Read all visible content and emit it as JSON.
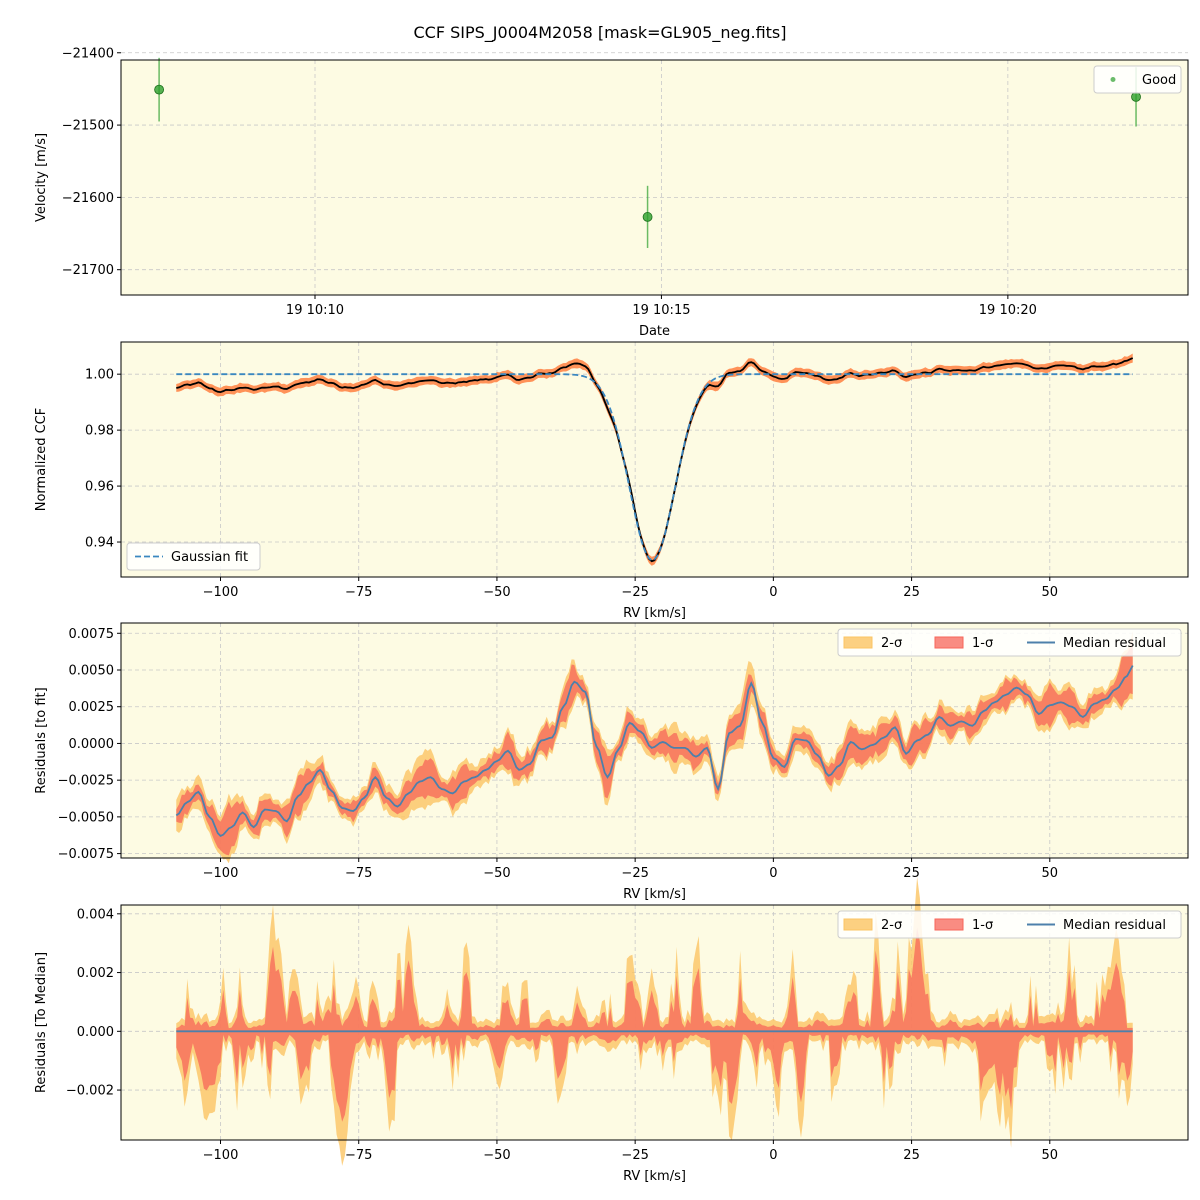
{
  "figure": {
    "title": "CCF SIPS_J0004M2058 [mask=GL905_neg.fits]",
    "background": "#ffffff",
    "panel_background": "#fdfbe3",
    "grid_color": "#c8c8c8"
  },
  "colors": {
    "good_point": "#2ca02c",
    "ccf_line": "#000000",
    "ccf_band": "#ff7f3f",
    "gaussian_fit": "#3a87c0",
    "sigma2": "#fbc463",
    "sigma1": "#f7665a",
    "median_residual": "#4d80ab"
  },
  "chart_data": [
    {
      "type": "scatter",
      "xlabel": "Date",
      "ylabel": "Velocity [m/s]",
      "xlim_minutes": [
        7.2,
        22.6
      ],
      "ylim": [
        -21735,
        -21410
      ],
      "xticks": [
        10,
        15,
        20
      ],
      "xtick_labels": [
        "19 10:10",
        "19 10:15",
        "19 10:20"
      ],
      "yticks": [
        -21400,
        -21500,
        -21600,
        -21700
      ],
      "ytick_labels": [
        "−21400",
        "−21500",
        "−21600",
        "−21700"
      ],
      "x_minutes": [
        7.75,
        14.8,
        21.85
      ],
      "y": [
        -21451,
        -21627,
        -21461
      ],
      "yerr": [
        44,
        43,
        41
      ],
      "legend": [
        {
          "label": "Good",
          "kind": "point"
        }
      ],
      "legend_position": "top-right",
      "grid": true
    },
    {
      "type": "line",
      "xlabel": "RV [km/s]",
      "ylabel": "Normalized CCF",
      "xlim": [
        -118,
        75
      ],
      "ylim": [
        0.9275,
        1.0115
      ],
      "xticks": [
        -100,
        -75,
        -50,
        -25,
        0,
        25,
        50
      ],
      "xtick_labels": [
        "−100",
        "−75",
        "−50",
        "−25",
        "0",
        "25",
        "50"
      ],
      "yticks": [
        0.94,
        0.96,
        0.98,
        1.0
      ],
      "ytick_labels": [
        "0.94",
        "0.96",
        "0.98",
        "1.00"
      ],
      "x_range": [
        -108,
        65
      ],
      "gaussian_fit": {
        "center": -21.9,
        "depth": 0.0665,
        "sigma": 4.15,
        "continuum": 1.0
      },
      "legend": [
        {
          "label": "Gaussian fit",
          "kind": "dashed"
        }
      ],
      "legend_position": "bottom-left",
      "grid": true
    },
    {
      "type": "area",
      "xlabel": "RV [km/s]",
      "ylabel": "Residuals [to fit]",
      "xlim": [
        -118,
        75
      ],
      "ylim": [
        -0.0078,
        0.0082
      ],
      "xticks": [
        -100,
        -75,
        -50,
        -25,
        0,
        25,
        50
      ],
      "xtick_labels": [
        "−100",
        "−75",
        "−50",
        "−25",
        "0",
        "25",
        "50"
      ],
      "yticks": [
        -0.0075,
        -0.005,
        -0.0025,
        0.0,
        0.0025,
        0.005,
        0.0075
      ],
      "ytick_labels": [
        "−0.0075",
        "−0.0050",
        "−0.0025",
        "0.0000",
        "0.0025",
        "0.0050",
        "0.0075"
      ],
      "median_residual": {
        "x": [
          -108,
          -106,
          -104,
          -102,
          -100,
          -98,
          -96,
          -94,
          -92,
          -90,
          -88,
          -86,
          -84,
          -82,
          -80,
          -78,
          -76,
          -74,
          -72,
          -70,
          -68,
          -66,
          -64,
          -62,
          -60,
          -58,
          -56,
          -54,
          -52,
          -50,
          -48,
          -46,
          -44,
          -42,
          -40,
          -38,
          -36,
          -34,
          -32,
          -30,
          -28,
          -26,
          -24,
          -22,
          -20,
          -18,
          -16,
          -14,
          -12,
          -10,
          -8,
          -6,
          -4,
          -2,
          0,
          2,
          4,
          6,
          8,
          10,
          12,
          14,
          16,
          18,
          20,
          22,
          24,
          26,
          28,
          30,
          32,
          34,
          36,
          38,
          40,
          42,
          44,
          46,
          48,
          50,
          52,
          54,
          56,
          58,
          60,
          62,
          64,
          65
        ],
        "y": [
          -0.0049,
          -0.004,
          -0.0033,
          -0.005,
          -0.0063,
          -0.0057,
          -0.0047,
          -0.0057,
          -0.0045,
          -0.0046,
          -0.0053,
          -0.0036,
          -0.0027,
          -0.0018,
          -0.0032,
          -0.0044,
          -0.0046,
          -0.0037,
          -0.0023,
          -0.0037,
          -0.0043,
          -0.0034,
          -0.0026,
          -0.0023,
          -0.0031,
          -0.0034,
          -0.0026,
          -0.0023,
          -0.0018,
          -0.0012,
          -0.0005,
          -0.0018,
          -0.0014,
          0.0002,
          0.0004,
          0.0025,
          0.0042,
          0.0035,
          -0.0002,
          -0.0023,
          -0.0004,
          0.0014,
          0.0008,
          -0.0003,
          0.0001,
          -0.0003,
          -0.0003,
          -0.0009,
          -0.0003,
          -0.0031,
          0.0007,
          0.0012,
          0.0041,
          0.0014,
          -0.001,
          -0.0016,
          0.0003,
          0.0002,
          -0.0008,
          -0.0022,
          -0.0015,
          0.0001,
          -0.0004,
          -0.0001,
          0.0004,
          0.0011,
          -0.0007,
          0.0002,
          0.0006,
          0.0018,
          0.0012,
          0.0015,
          0.0012,
          0.0022,
          0.0028,
          0.0033,
          0.0038,
          0.0033,
          0.002,
          0.0026,
          0.0028,
          0.0025,
          0.0018,
          0.0027,
          0.003,
          0.0037,
          0.0046,
          0.0053
        ]
      },
      "legend": [
        {
          "label": "2-σ",
          "kind": "patch"
        },
        {
          "label": "1-σ",
          "kind": "patch"
        },
        {
          "label": "Median residual",
          "kind": "line"
        }
      ],
      "legend_position": "top-right",
      "grid": true
    },
    {
      "type": "area",
      "xlabel": "RV [km/s]",
      "ylabel": "Residuals [To Median]",
      "xlim": [
        -118,
        75
      ],
      "ylim": [
        -0.0037,
        0.0043
      ],
      "xticks": [
        -100,
        -75,
        -50,
        -25,
        0,
        25,
        50
      ],
      "xtick_labels": [
        "−100",
        "−75",
        "−50",
        "−25",
        "0",
        "25",
        "50"
      ],
      "yticks": [
        -0.002,
        0.0,
        0.002,
        0.004
      ],
      "ytick_labels": [
        "−0.002",
        "0.000",
        "0.002",
        "0.004"
      ],
      "median_residual_value": 0.0,
      "legend": [
        {
          "label": "2-σ",
          "kind": "patch"
        },
        {
          "label": "1-σ",
          "kind": "patch"
        },
        {
          "label": "Median residual",
          "kind": "line"
        }
      ],
      "legend_position": "top-right",
      "grid": true
    }
  ]
}
